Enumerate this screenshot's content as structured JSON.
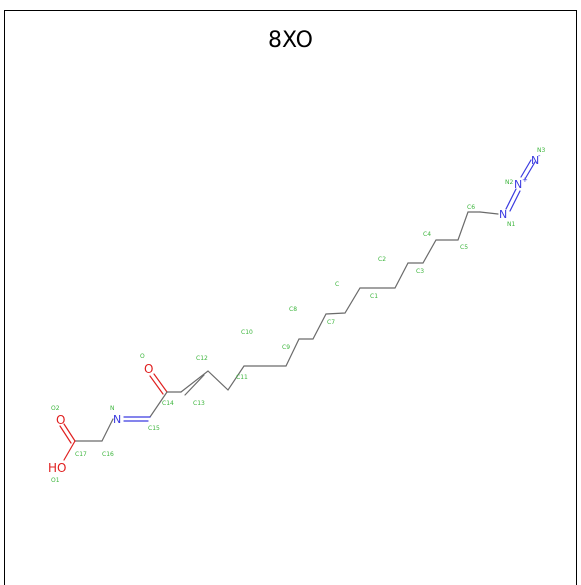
{
  "title": "8XO",
  "atom_symbols": {
    "n_azide_terminal": "N",
    "n_azide_middle": "N",
    "n_azide_first": "N",
    "n_imine": "N",
    "o_ketone": "O",
    "o_carbonyl": "O",
    "o_hydroxyl": "HO"
  },
  "atom_labels": {
    "N3": "N3",
    "N2": "N2",
    "N1": "N1",
    "C6": "C6",
    "C5": "C5",
    "C4": "C4",
    "C3": "C3",
    "C2": "C2",
    "C1": "C1",
    "C": "C",
    "C7": "C7",
    "C8": "C8",
    "C9": "C9",
    "C10": "C10",
    "C11": "C11",
    "C12": "C12",
    "C13": "C13",
    "C14": "C14",
    "C15": "C15",
    "C16": "C16",
    "C17": "C17",
    "O": "O",
    "N": "N",
    "O2": "O2",
    "O1": "O1"
  },
  "colors": {
    "bond": "#6b6b6b",
    "nitrogen": "#3a3ae0",
    "oxygen": "#e02020",
    "label": "#3cb53c"
  }
}
